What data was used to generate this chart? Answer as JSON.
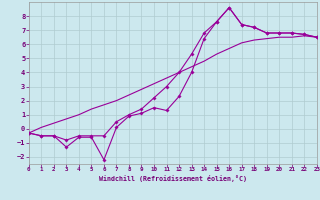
{
  "xlabel": "Windchill (Refroidissement éolien,°C)",
  "bg_color": "#cce8ee",
  "grid_color": "#b0ccd0",
  "line_color": "#990099",
  "text_color": "#770077",
  "xlim": [
    0,
    23
  ],
  "ylim": [
    -2.5,
    9.0
  ],
  "xticks": [
    0,
    1,
    2,
    3,
    4,
    5,
    6,
    7,
    8,
    9,
    10,
    11,
    12,
    13,
    14,
    15,
    16,
    17,
    18,
    19,
    20,
    21,
    22,
    23
  ],
  "yticks": [
    -2,
    -1,
    0,
    1,
    2,
    3,
    4,
    5,
    6,
    7,
    8
  ],
  "line1_x": [
    0,
    1,
    2,
    3,
    4,
    5,
    6,
    7,
    8,
    9,
    10,
    11,
    12,
    13,
    14,
    15,
    16,
    17,
    18,
    19,
    20,
    21,
    22,
    23
  ],
  "line1_y": [
    -0.3,
    -0.5,
    -0.5,
    -1.3,
    -0.6,
    -0.6,
    -2.2,
    0.1,
    0.9,
    1.1,
    1.5,
    1.3,
    2.3,
    4.0,
    6.4,
    7.6,
    8.6,
    7.4,
    7.2,
    6.8,
    6.8,
    6.8,
    6.7,
    6.5
  ],
  "line2_x": [
    0,
    1,
    2,
    3,
    4,
    5,
    6,
    7,
    8,
    9,
    10,
    11,
    12,
    13,
    14,
    15,
    16,
    17,
    18,
    19,
    20,
    21,
    22,
    23
  ],
  "line2_y": [
    -0.3,
    -0.5,
    -0.5,
    -0.8,
    -0.5,
    -0.5,
    -0.5,
    0.5,
    1.0,
    1.4,
    2.2,
    3.0,
    4.0,
    5.3,
    6.8,
    7.6,
    8.6,
    7.4,
    7.2,
    6.8,
    6.8,
    6.8,
    6.7,
    6.5
  ],
  "line3_x": [
    0,
    1,
    2,
    3,
    4,
    5,
    6,
    7,
    8,
    9,
    10,
    11,
    12,
    13,
    14,
    15,
    16,
    17,
    18,
    19,
    20,
    21,
    22,
    23
  ],
  "line3_y": [
    -0.3,
    0.1,
    0.4,
    0.7,
    1.0,
    1.4,
    1.7,
    2.0,
    2.4,
    2.8,
    3.2,
    3.6,
    4.0,
    4.4,
    4.8,
    5.3,
    5.7,
    6.1,
    6.3,
    6.4,
    6.5,
    6.5,
    6.6,
    6.5
  ]
}
